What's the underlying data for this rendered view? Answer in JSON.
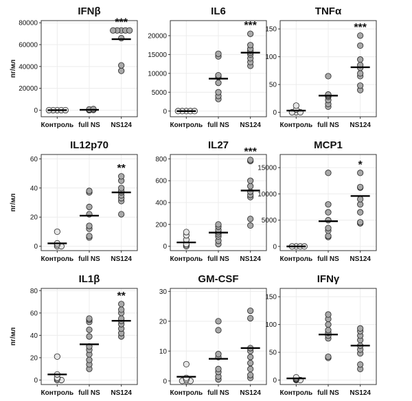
{
  "figure": {
    "ylabel": "пг/мл"
  },
  "chart_data": [
    {
      "type": "scatter",
      "title": "IFNβ",
      "ylim": [
        -6000,
        82000
      ],
      "yticks": [
        0,
        20000,
        40000,
        60000,
        80000
      ],
      "categories": [
        "Контроль",
        "full NS",
        "NS124"
      ],
      "values": [
        [
          0,
          0,
          0,
          0,
          0
        ],
        [
          0,
          300,
          700,
          1000
        ],
        [
          36000,
          41000,
          66000,
          73000,
          73000,
          73000,
          73000,
          73000
        ]
      ],
      "means": [
        0,
        300,
        65000
      ],
      "significance": [
        "",
        "",
        "***"
      ],
      "xlabel": "",
      "ylabel": "пг/мл",
      "grid": true
    },
    {
      "type": "scatter",
      "title": "IL6",
      "ylim": [
        -1500,
        24000
      ],
      "yticks": [
        0,
        5000,
        10000,
        15000,
        20000
      ],
      "categories": [
        "Контроль",
        "full NS",
        "NS124"
      ],
      "values": [
        [
          0,
          0,
          0,
          0,
          0
        ],
        [
          3200,
          4000,
          5000,
          7500,
          9000,
          9500,
          14500,
          15200
        ],
        [
          12000,
          13000,
          14000,
          15000,
          15500,
          16000,
          16500,
          17500,
          20500
        ]
      ],
      "means": [
        0,
        8600,
        15500
      ],
      "significance": [
        "",
        "",
        "***"
      ],
      "xlabel": "",
      "ylabel": "",
      "grid": true
    },
    {
      "type": "scatter",
      "title": "TNFα",
      "ylim": [
        -8,
        165
      ],
      "yticks": [
        0,
        50,
        100,
        150
      ],
      "categories": [
        "Контроль",
        "full NS",
        "NS124"
      ],
      "values": [
        [
          0,
          0,
          0,
          5,
          12
        ],
        [
          10,
          15,
          22,
          28,
          30,
          32,
          65
        ],
        [
          40,
          48,
          65,
          70,
          80,
          85,
          95,
          120,
          138
        ]
      ],
      "means": [
        3,
        30,
        81
      ],
      "significance": [
        "",
        "",
        "***"
      ],
      "xlabel": "",
      "ylabel": "",
      "grid": true
    },
    {
      "type": "scatter",
      "title": "IL12p70",
      "ylim": [
        -3,
        63
      ],
      "yticks": [
        0,
        20,
        40,
        60
      ],
      "categories": [
        "Контроль",
        "full NS",
        "NS124"
      ],
      "values": [
        [
          0,
          0,
          1,
          2,
          10
        ],
        [
          6,
          7,
          12,
          14,
          22,
          27,
          37,
          38
        ],
        [
          22,
          31,
          33,
          35,
          37,
          38,
          40,
          45,
          48
        ]
      ],
      "means": [
        2,
        21,
        37
      ],
      "significance": [
        "",
        "",
        "**"
      ],
      "xlabel": "",
      "ylabel": "пг/мл",
      "grid": true
    },
    {
      "type": "scatter",
      "title": "IL27",
      "ylim": [
        -40,
        840
      ],
      "yticks": [
        0,
        200,
        400,
        600,
        800
      ],
      "categories": [
        "Контроль",
        "full NS",
        "NS124"
      ],
      "values": [
        [
          0,
          10,
          20,
          60,
          100,
          130
        ],
        [
          20,
          50,
          90,
          110,
          130,
          150,
          180,
          200
        ],
        [
          190,
          250,
          450,
          470,
          500,
          550,
          600,
          780,
          790
        ]
      ],
      "means": [
        35,
        125,
        510
      ],
      "significance": [
        "",
        "",
        "***"
      ],
      "xlabel": "",
      "ylabel": "",
      "grid": true
    },
    {
      "type": "scatter",
      "title": "MCP1",
      "ylim": [
        -800,
        17500
      ],
      "yticks": [
        0,
        5000,
        10000,
        15000
      ],
      "categories": [
        "Контроль",
        "full NS",
        "NS124"
      ],
      "values": [
        [
          0,
          0,
          0,
          0
        ],
        [
          1800,
          2000,
          3000,
          3500,
          5000,
          6500,
          8000,
          14000
        ],
        [
          4400,
          4600,
          6500,
          8000,
          9000,
          11200,
          11300,
          14000
        ]
      ],
      "means": [
        0,
        4800,
        9600
      ],
      "significance": [
        "",
        "",
        "*"
      ],
      "xlabel": "",
      "ylabel": "",
      "grid": true
    },
    {
      "type": "scatter",
      "title": "IL1β",
      "ylim": [
        -4,
        82
      ],
      "yticks": [
        0,
        20,
        40,
        60,
        80
      ],
      "categories": [
        "Контроль",
        "full NS",
        "NS124"
      ],
      "values": [
        [
          0,
          0,
          1,
          2,
          5,
          21
        ],
        [
          10,
          14,
          18,
          23,
          27,
          30,
          39,
          45,
          52,
          54,
          55
        ],
        [
          39,
          42,
          46,
          50,
          53,
          55,
          60,
          63,
          68
        ]
      ],
      "means": [
        5,
        32,
        53
      ],
      "significance": [
        "",
        "",
        "**"
      ],
      "xlabel": "",
      "ylabel": "пг/мл",
      "grid": true
    },
    {
      "type": "scatter",
      "title": "GM-CSF",
      "ylim": [
        -1.2,
        31
      ],
      "yticks": [
        0,
        10,
        20,
        30
      ],
      "categories": [
        "Контроль",
        "full NS",
        "NS124"
      ],
      "values": [
        [
          0,
          0,
          0,
          0.5,
          1,
          5.6
        ],
        [
          0.5,
          1.5,
          3,
          4,
          8,
          9,
          17,
          20
        ],
        [
          1,
          2,
          4,
          6,
          8,
          10,
          11,
          21,
          23.5
        ]
      ],
      "means": [
        1.4,
        7.4,
        11
      ],
      "significance": [
        "",
        "",
        ""
      ],
      "xlabel": "",
      "ylabel": "",
      "grid": true
    },
    {
      "type": "scatter",
      "title": "IFNγ",
      "ylim": [
        -8,
        165
      ],
      "yticks": [
        0,
        50,
        100,
        150
      ],
      "categories": [
        "Контроль",
        "full NS",
        "NS124"
      ],
      "values": [
        [
          0,
          0,
          1,
          2,
          3,
          5
        ],
        [
          40,
          42,
          75,
          80,
          85,
          90,
          100,
          110,
          118
        ],
        [
          20,
          28,
          48,
          55,
          62,
          72,
          80,
          88,
          93
        ]
      ],
      "means": [
        3,
        82,
        62
      ],
      "significance": [
        "",
        "",
        ""
      ],
      "xlabel": "",
      "ylabel": "",
      "grid": true
    }
  ]
}
